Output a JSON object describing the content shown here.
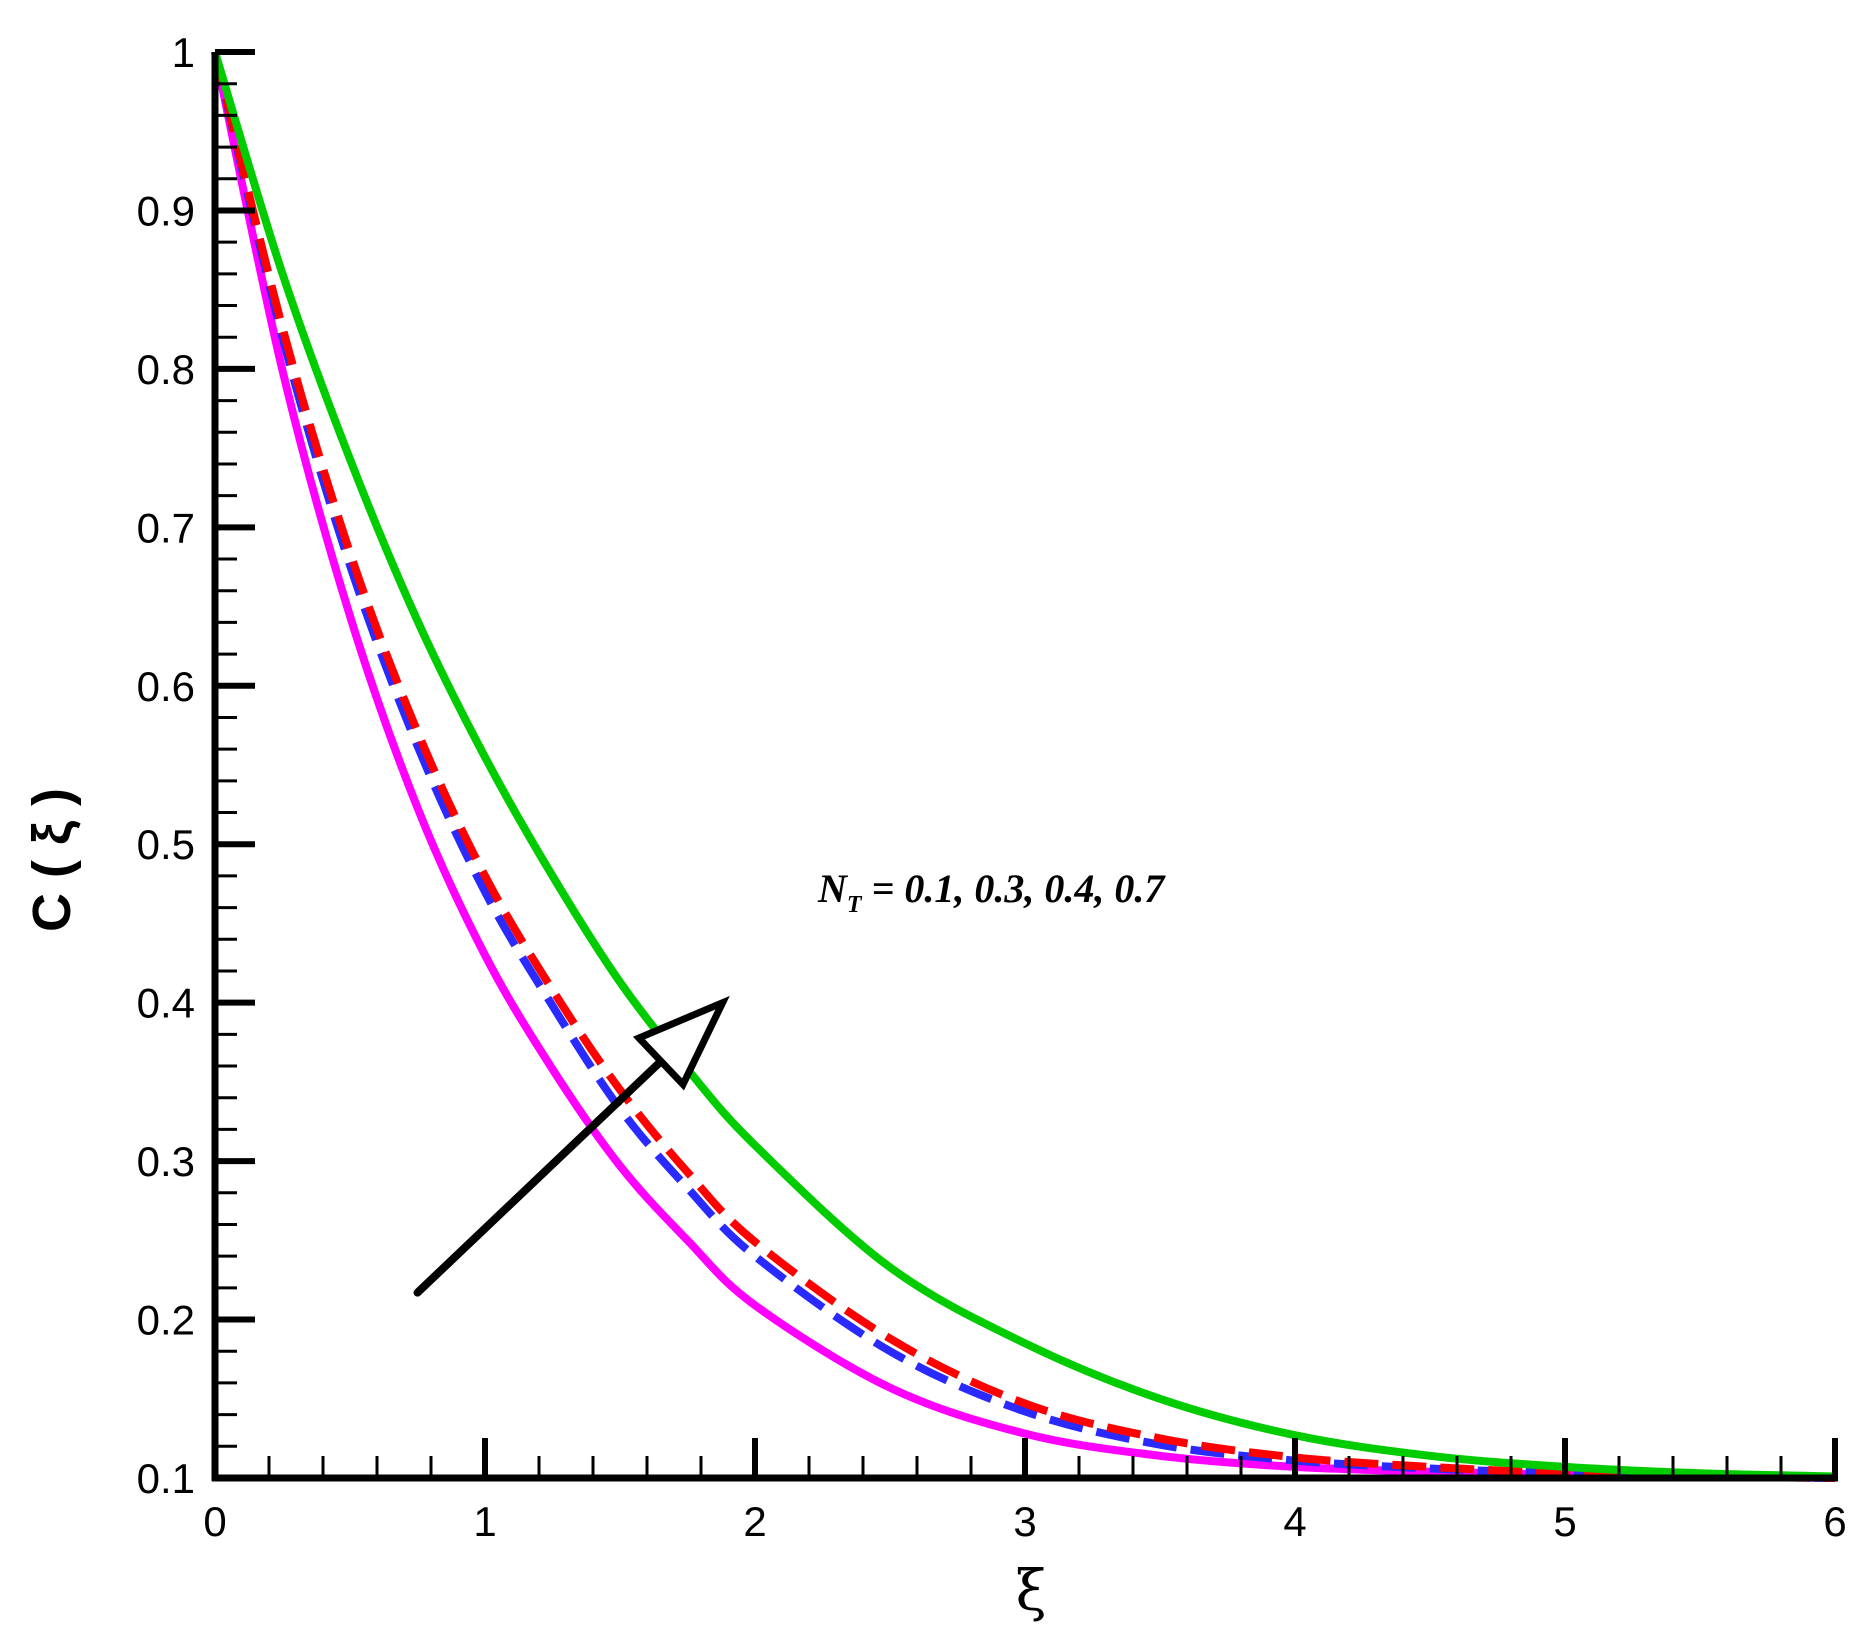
{
  "chart_data": {
    "type": "line",
    "xlabel": "ξ",
    "ylabel": "C ( ξ )",
    "xlim": [
      0,
      6
    ],
    "ylim": [
      0.1,
      1
    ],
    "x_ticks": [
      "0",
      "1",
      "2",
      "3",
      "4",
      "5",
      "6"
    ],
    "y_ticks": [
      "0.1",
      "0.2",
      "0.3",
      "0.4",
      "0.5",
      "0.6",
      "0.7",
      "0.8",
      "0.9",
      "1"
    ],
    "grid": false,
    "annotation": {
      "symbol": "N",
      "subscript": "T",
      "text": " = 0.1, 0.3, 0.4, 0.7",
      "arrow": {
        "from": [
          0.75,
          0.217
        ],
        "to": [
          1.88,
          0.4
        ]
      }
    },
    "x": [
      0,
      0.25,
      0.5,
      0.75,
      1,
      1.25,
      1.5,
      1.75,
      2,
      2.5,
      3,
      3.5,
      4,
      4.5,
      5,
      5.5,
      6
    ],
    "series": [
      {
        "color": "#ff00ff",
        "dash": "solid",
        "values": [
          1,
          0.799,
          0.644,
          0.523,
          0.43,
          0.358,
          0.297,
          0.25,
          0.209,
          0.157,
          0.128,
          0.114,
          0.107,
          0.104,
          0.102,
          0.101,
          0.1
        ]
      },
      {
        "color": "#2a2aff",
        "dash": "dashed",
        "values": [
          1,
          0.82,
          0.676,
          0.562,
          0.47,
          0.398,
          0.333,
          0.283,
          0.24,
          0.18,
          0.142,
          0.121,
          0.111,
          0.106,
          0.103,
          0.101,
          0.1
        ]
      },
      {
        "color": "#ff0000",
        "dash": "dashed",
        "values": [
          1,
          0.826,
          0.684,
          0.571,
          0.48,
          0.408,
          0.345,
          0.293,
          0.249,
          0.188,
          0.147,
          0.125,
          0.113,
          0.107,
          0.103,
          0.101,
          0.1
        ]
      },
      {
        "color": "#00cc00",
        "dash": "solid",
        "values": [
          1,
          0.86,
          0.743,
          0.641,
          0.555,
          0.48,
          0.413,
          0.358,
          0.31,
          0.233,
          0.185,
          0.15,
          0.127,
          0.114,
          0.107,
          0.103,
          0.101
        ]
      }
    ]
  }
}
